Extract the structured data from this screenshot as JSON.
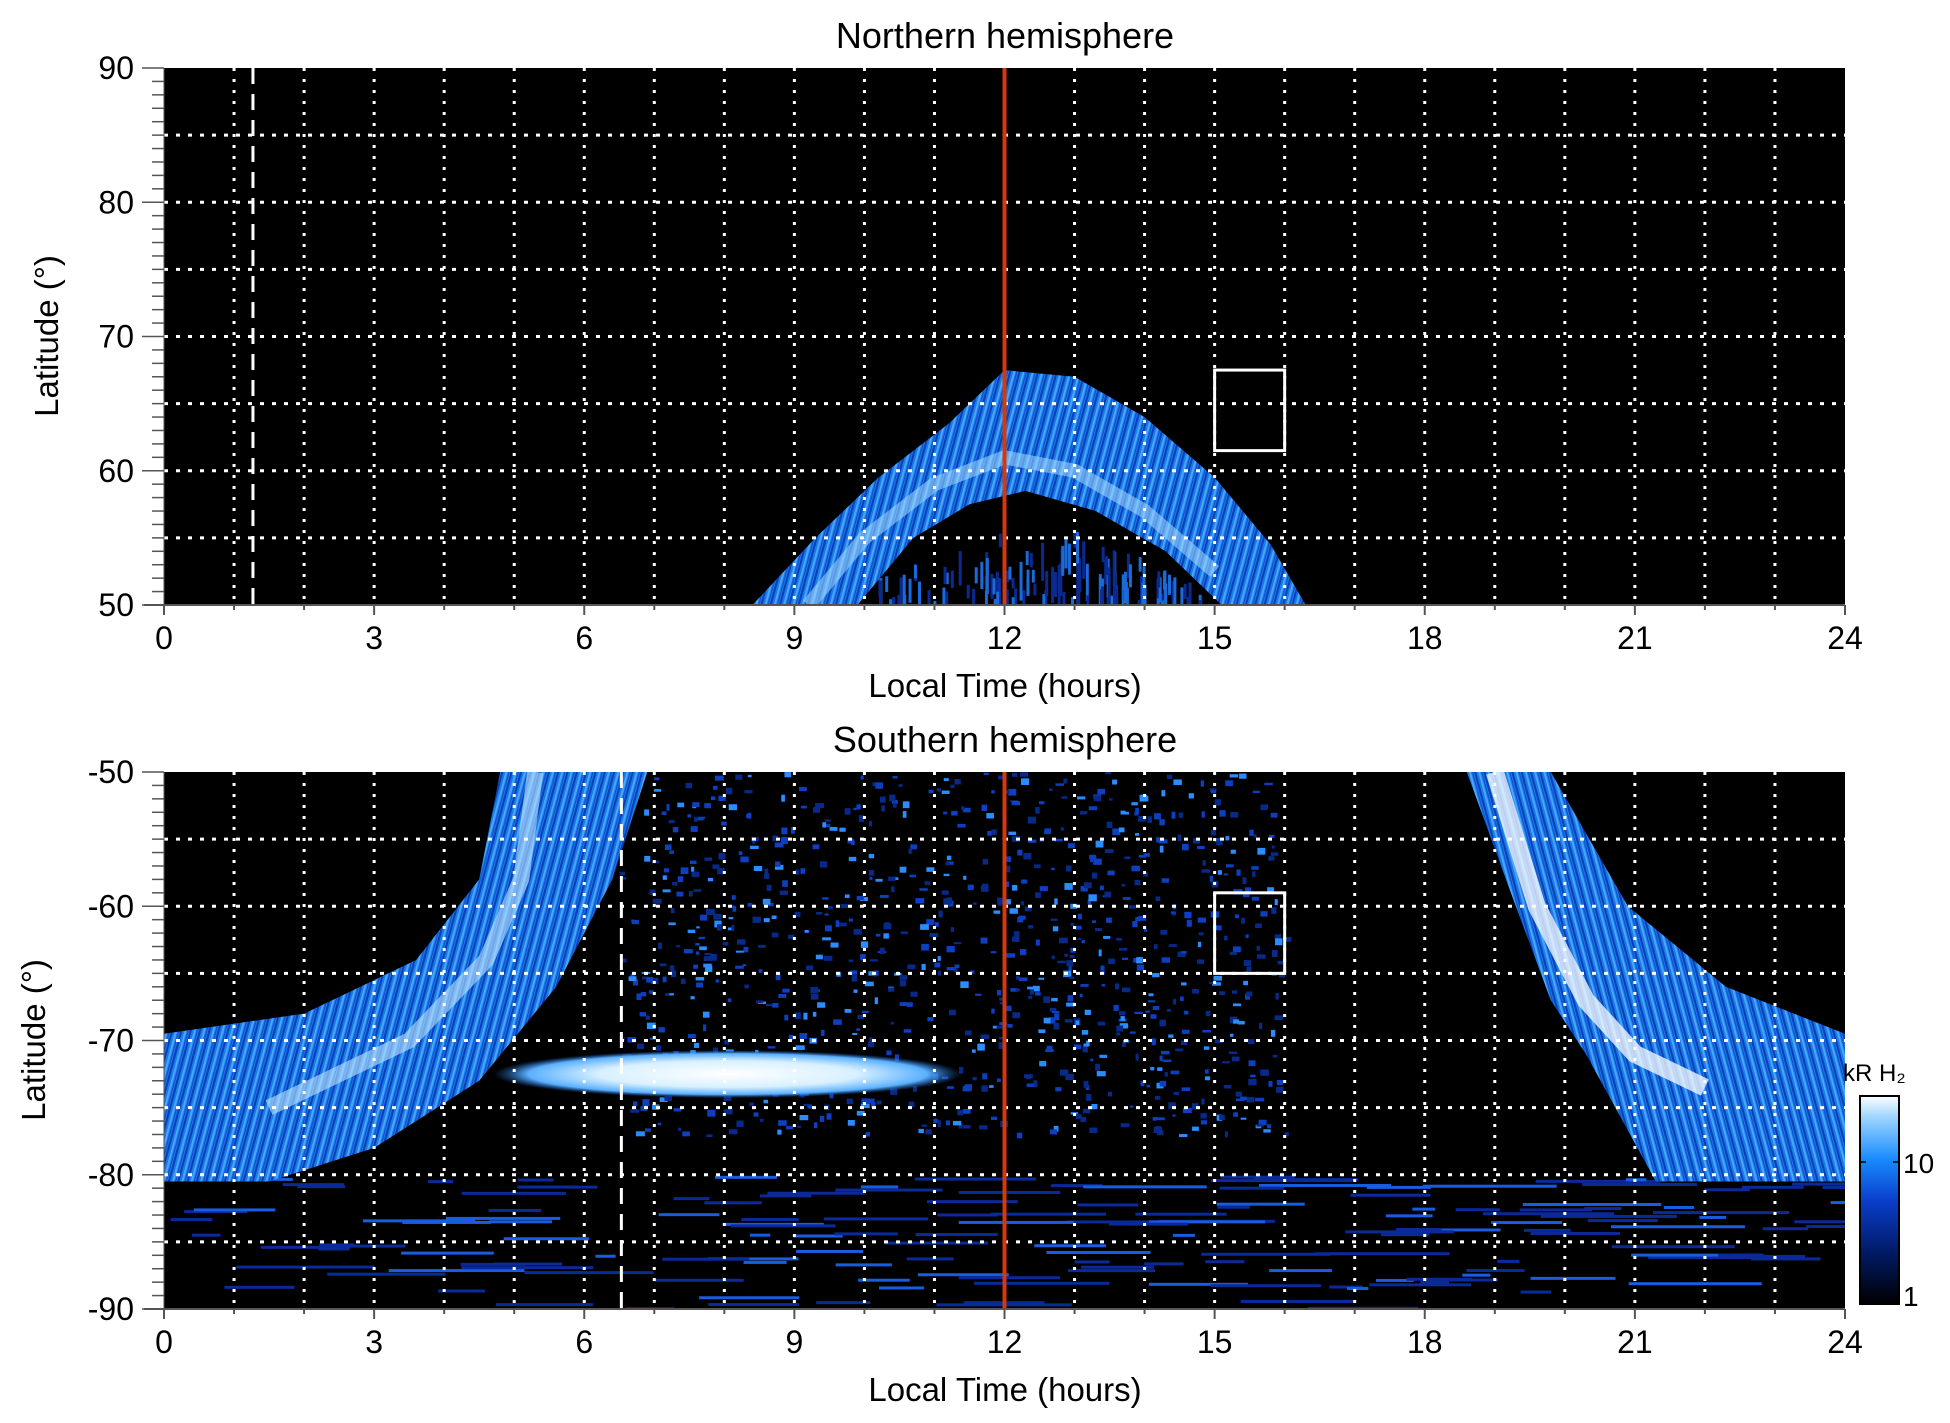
{
  "chart_data": [
    {
      "type": "heatmap",
      "title": "Northern hemisphere",
      "xlabel": "Local Time (hours)",
      "ylabel": "Latitude (°)",
      "xlim": [
        0,
        24
      ],
      "ylim": [
        50,
        90
      ],
      "xticks": [
        "0",
        "3",
        "6",
        "9",
        "12",
        "15",
        "18",
        "21",
        "24"
      ],
      "yticks": [
        "50",
        "60",
        "70",
        "80",
        "90"
      ],
      "grid": true,
      "grid_x_step": 1,
      "grid_y_step": 5,
      "reference_line_lt": 12,
      "dashed_line_lt": 1.27,
      "box": {
        "lt": [
          15,
          16
        ],
        "lat": [
          61.5,
          67.5
        ]
      },
      "features": {
        "auroral_oval_outer": [
          [
            8.4,
            50
          ],
          [
            9.3,
            55
          ],
          [
            10.2,
            59.5
          ],
          [
            11.2,
            63.5
          ],
          [
            12,
            67.5
          ],
          [
            13,
            67
          ],
          [
            14,
            64
          ],
          [
            15,
            59.5
          ],
          [
            15.8,
            54.5
          ],
          [
            16.3,
            50
          ]
        ],
        "auroral_oval_inner": [
          [
            15.1,
            50
          ],
          [
            14.3,
            54
          ],
          [
            13.3,
            57
          ],
          [
            12.3,
            58.5
          ],
          [
            11.5,
            57.5
          ],
          [
            10.7,
            55
          ],
          [
            9.9,
            50
          ]
        ],
        "peak_brightness_lat": 60
      }
    },
    {
      "type": "heatmap",
      "title": "Southern hemisphere",
      "xlabel": "Local Time (hours)",
      "ylabel": "Latitude (°)",
      "xlim": [
        0,
        24
      ],
      "ylim": [
        -90,
        -50
      ],
      "xticks": [
        "0",
        "3",
        "6",
        "9",
        "12",
        "15",
        "18",
        "21",
        "24"
      ],
      "yticks": [
        "-90",
        "-80",
        "-70",
        "-60",
        "-50"
      ],
      "grid": true,
      "grid_x_step": 1,
      "grid_y_step": 5,
      "reference_line_lt": 12,
      "dashed_line_lt": 6.53,
      "box": {
        "lt": [
          15,
          16
        ],
        "lat": [
          -65,
          -59
        ]
      },
      "features": {
        "dawn_oval": [
          [
            4.8,
            -50
          ],
          [
            4.5,
            -58
          ],
          [
            3.6,
            -64
          ],
          [
            2,
            -68
          ],
          [
            0,
            -69.5
          ],
          [
            0,
            -80.5
          ],
          [
            1.5,
            -80.5
          ],
          [
            3,
            -78
          ],
          [
            4.5,
            -73
          ],
          [
            5.6,
            -66
          ],
          [
            6.4,
            -58
          ],
          [
            6.9,
            -50
          ]
        ],
        "dusk_oval": [
          [
            18.6,
            -50
          ],
          [
            19.3,
            -60
          ],
          [
            19.8,
            -67
          ],
          [
            20.3,
            -71
          ],
          [
            21.3,
            -80.5
          ],
          [
            24,
            -80.5
          ],
          [
            24,
            -69.5
          ],
          [
            22.3,
            -66
          ],
          [
            20.9,
            -60
          ],
          [
            19.8,
            -50
          ]
        ],
        "bright_arc": {
          "lt": [
            4.7,
            11.4
          ],
          "lat": -72.5
        }
      }
    }
  ],
  "colorbar": {
    "label": "kR H₂",
    "scale": "log",
    "range": [
      1,
      30
    ],
    "ticks": [
      "1",
      "10"
    ],
    "colors": [
      "#000000",
      "#001a66",
      "#0a3fcc",
      "#1a8cff",
      "#9fd6ff",
      "#ffffff"
    ]
  },
  "colors": {
    "reference_line": "#d4380d",
    "oval": "#1e7fe8",
    "oval_bright": "#a8dcff"
  }
}
